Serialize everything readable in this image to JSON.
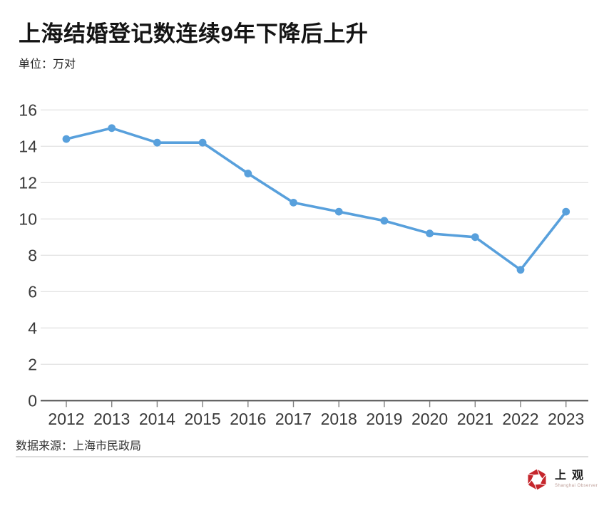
{
  "title": "上海结婚登记数连续9年下降后上升",
  "unit_label": "单位：万对",
  "source": "数据来源：上海市民政局",
  "logo": {
    "name": "上观",
    "subtitle": "Shanghai Observer"
  },
  "colors": {
    "line": "#58A0DC",
    "grid": "#e4e4e4",
    "axis": "#555555",
    "tick": "#808080",
    "label": "#3a3a3a",
    "logo_red": "#C5262C"
  },
  "chart_data": {
    "type": "line",
    "title": "上海结婚登记数连续9年下降后上升",
    "unit": "万对",
    "x": [
      "2012",
      "2013",
      "2014",
      "2015",
      "2016",
      "2017",
      "2018",
      "2019",
      "2020",
      "2021",
      "2022",
      "2023"
    ],
    "values": [
      14.4,
      15.0,
      14.2,
      14.2,
      12.5,
      10.9,
      10.4,
      9.9,
      9.2,
      9.0,
      7.2,
      10.4
    ],
    "ylim": [
      0,
      16
    ],
    "ytick_step": 2,
    "xlabel": "",
    "ylabel": "",
    "grid": true,
    "legend": "none",
    "marker": "circle",
    "source": "上海市民政局"
  }
}
